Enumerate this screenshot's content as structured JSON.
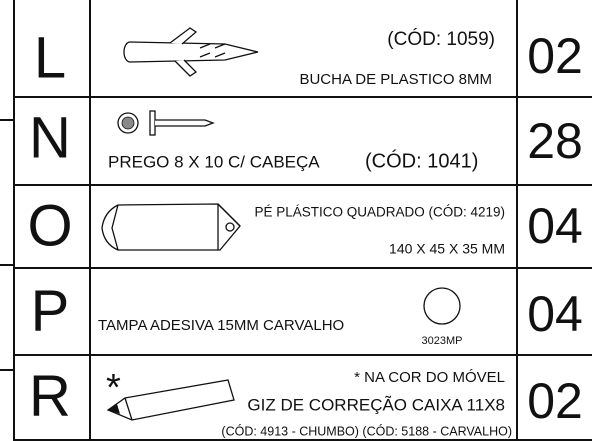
{
  "rows": [
    {
      "letter": "L",
      "code": "(CÓD: 1059)",
      "name": "BUCHA DE PLASTICO 8MM",
      "quantity": "02"
    },
    {
      "letter": "N",
      "name": "PREGO 8 X 10 C/ CABEÇA",
      "code": "(CÓD: 1041)",
      "quantity": "28"
    },
    {
      "letter": "O",
      "name": "PÉ PLÁSTICO QUADRADO (CÓD: 4219)",
      "size": "140 X 45 X 35 MM",
      "quantity": "04"
    },
    {
      "letter": "P",
      "name": "TAMPA ADESIVA 15MM CARVALHO",
      "color_code": "3023MP",
      "quantity": "04"
    },
    {
      "letter": "R",
      "marker": "*",
      "note": "* NA COR DO MÓVEL",
      "name": "GIZ DE CORREÇÃO CAIXA 11X8",
      "code": "(CÓD: 4913 - CHUMBO) (CÓD: 5188 - CARVALHO)",
      "quantity": "02"
    }
  ]
}
